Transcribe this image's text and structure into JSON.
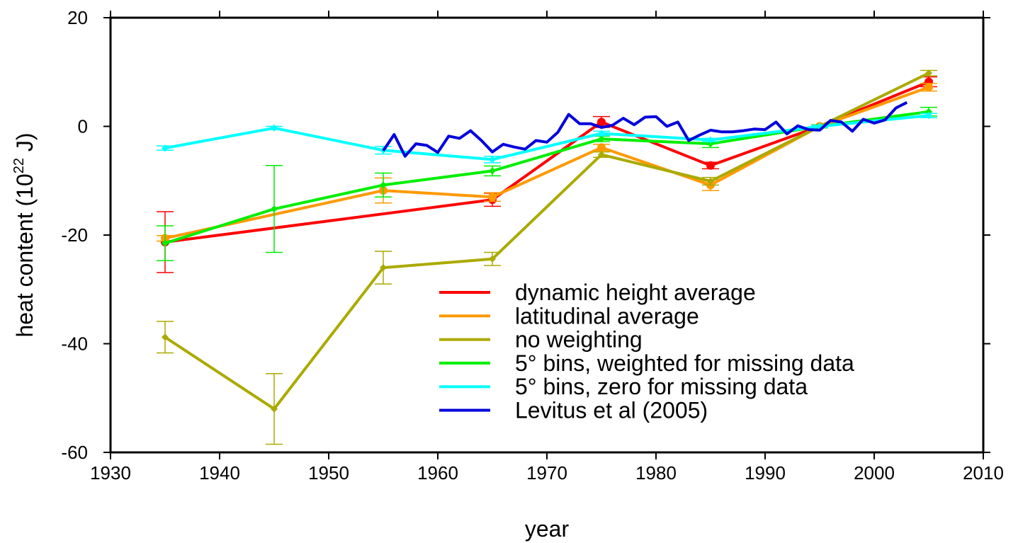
{
  "chart_data": {
    "type": "line",
    "xlabel": "year",
    "ylabel": "heat content (10²² J)",
    "ylabel_parts": {
      "prefix": "heat content (10",
      "superscript": "22",
      "suffix": " J)"
    },
    "xlim": [
      1930,
      2010
    ],
    "ylim": [
      -60,
      20
    ],
    "xticks": [
      "1930",
      "1940",
      "1950",
      "1960",
      "1970",
      "1980",
      "1990",
      "2000",
      "2010"
    ],
    "yticks": [
      "20",
      "0",
      "-20",
      "-40",
      "-60"
    ],
    "grid": false,
    "legend_position": "lower-right",
    "series": [
      {
        "name": "dynamic height average",
        "color": "#ff0000",
        "marker": "circle",
        "x": [
          1935,
          1965,
          1975,
          1985,
          1995,
          2005
        ],
        "y": [
          -21.3,
          -13.5,
          0.8,
          -7.2,
          0.0,
          8.2
        ],
        "err": [
          5.6,
          1.2,
          1.0,
          0.6,
          0.3,
          0.9
        ]
      },
      {
        "name": "latitudinal average",
        "color": "#ff9900",
        "marker": "circle",
        "x": [
          1935,
          1955,
          1965,
          1975,
          1985,
          1995,
          2005
        ],
        "y": [
          -20.6,
          -11.8,
          -13.0,
          -3.9,
          -10.8,
          0.0,
          7.2
        ],
        "err": [
          0.5,
          2.3,
          0.8,
          0.6,
          1.0,
          0.3,
          0.7
        ]
      },
      {
        "name": "no weighting",
        "color": "#aaaa00",
        "marker": "diamond",
        "x": [
          1935,
          1945,
          1955,
          1965,
          1975,
          1985,
          1995,
          2005
        ],
        "y": [
          -38.8,
          -52.0,
          -26.0,
          -24.4,
          -5.2,
          -10.1,
          0.0,
          9.8
        ],
        "err": [
          2.9,
          6.5,
          3.0,
          1.2,
          0.5,
          0.7,
          0.3,
          0.5
        ]
      },
      {
        "name": "5° bins, weighted for missing data",
        "color": "#00ee00",
        "marker": "diamond",
        "x": [
          1935,
          1945,
          1955,
          1965,
          1975,
          1985,
          1995,
          2005
        ],
        "y": [
          -21.5,
          -15.2,
          -10.8,
          -8.2,
          -2.3,
          -3.2,
          0.0,
          2.7
        ],
        "err": [
          3.2,
          8.0,
          2.2,
          0.9,
          0.5,
          0.7,
          0.3,
          0.8
        ]
      },
      {
        "name": "5° bins, zero for missing data",
        "color": "#00ffff",
        "marker": "diamond",
        "x": [
          1935,
          1945,
          1955,
          1965,
          1975,
          1985,
          1995,
          2005
        ],
        "y": [
          -4.0,
          -0.3,
          -4.4,
          -6.1,
          -1.3,
          -2.5,
          0.0,
          2.0
        ],
        "err": [
          0.4,
          0.3,
          0.7,
          0.6,
          0.4,
          0.3,
          0.2,
          0.4
        ]
      },
      {
        "name": "Levitus et al (2005)",
        "color": "#0000dd",
        "marker": "none",
        "x": [
          1955,
          1956,
          1957,
          1958,
          1959,
          1960,
          1961,
          1962,
          1963,
          1964,
          1965,
          1966,
          1967,
          1968,
          1969,
          1970,
          1971,
          1972,
          1973,
          1974,
          1975,
          1976,
          1977,
          1978,
          1979,
          1980,
          1981,
          1982,
          1983,
          1984,
          1985,
          1986,
          1987,
          1988,
          1989,
          1990,
          1991,
          1992,
          1993,
          1994,
          1995,
          1996,
          1997,
          1998,
          1999,
          2000,
          2001,
          2002,
          2003
        ],
        "y": [
          -4.5,
          -1.5,
          -5.5,
          -3.2,
          -3.5,
          -4.8,
          -1.8,
          -2.2,
          -0.8,
          -2.6,
          -4.7,
          -3.3,
          -3.8,
          -4.2,
          -2.6,
          -2.9,
          -1.1,
          2.2,
          0.5,
          0.5,
          -0.2,
          0.2,
          1.5,
          0.3,
          1.7,
          1.8,
          0.0,
          0.8,
          -2.6,
          -1.6,
          -0.7,
          -1.0,
          -1.0,
          -0.8,
          -0.5,
          -0.6,
          0.8,
          -1.4,
          0.1,
          -0.6,
          -0.7,
          1.1,
          0.8,
          -0.9,
          1.3,
          0.6,
          1.2,
          3.4,
          4.4
        ]
      }
    ]
  }
}
